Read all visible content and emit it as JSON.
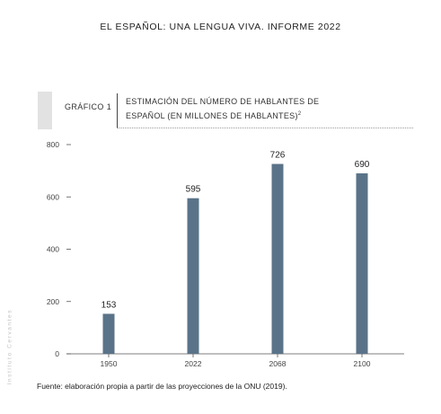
{
  "header": {
    "running_title": "EL ESPAÑOL: UNA LENGUA VIVA. INFORME 2022"
  },
  "figure": {
    "label": "GRÁFICO 1",
    "title_line1": "ESTIMACIÓN DEL NÚMERO DE HABLANTES DE",
    "title_line2": "ESPAÑOL (EN MILLONES DE HABLANTES)",
    "title_footnote": "2",
    "source": "Fuente: elaboración propia a partir de las proyecciones de la ONU (2019)."
  },
  "side_watermark": "Instituto Cervantes",
  "colors": {
    "bar": "#5a7388",
    "axis": "#555555",
    "accent": "#e2e2e2"
  },
  "chart_data": {
    "type": "bar",
    "categories": [
      "1950",
      "2022",
      "2068",
      "2100"
    ],
    "values": [
      153,
      595,
      726,
      690
    ],
    "title": "ESTIMACIÓN DEL NÚMERO DE HABLANTES DE ESPAÑOL (EN MILLONES DE HABLANTES)",
    "xlabel": "",
    "ylabel": "",
    "ylim": [
      0,
      800
    ],
    "yticks": [
      0,
      200,
      400,
      600,
      800
    ],
    "data_labels": true,
    "grid": false
  }
}
